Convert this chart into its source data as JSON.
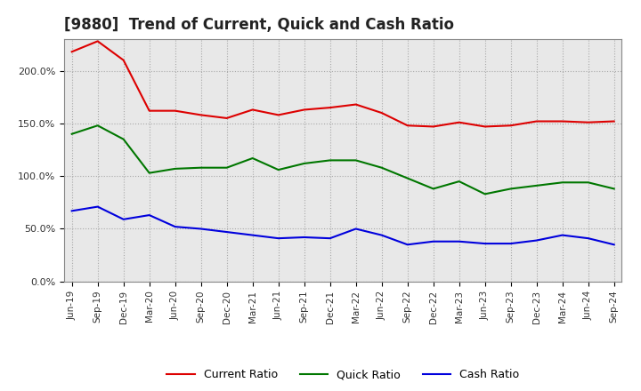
{
  "title": "[9880]  Trend of Current, Quick and Cash Ratio",
  "labels": [
    "Jun-19",
    "Sep-19",
    "Dec-19",
    "Mar-20",
    "Jun-20",
    "Sep-20",
    "Dec-20",
    "Mar-21",
    "Jun-21",
    "Sep-21",
    "Dec-21",
    "Mar-22",
    "Jun-22",
    "Sep-22",
    "Dec-22",
    "Mar-23",
    "Jun-23",
    "Sep-23",
    "Dec-23",
    "Mar-24",
    "Jun-24",
    "Sep-24"
  ],
  "current_ratio": [
    2.18,
    2.28,
    2.1,
    1.62,
    1.62,
    1.58,
    1.55,
    1.63,
    1.58,
    1.63,
    1.65,
    1.68,
    1.6,
    1.48,
    1.47,
    1.51,
    1.47,
    1.48,
    1.52,
    1.52,
    1.51,
    1.52
  ],
  "quick_ratio": [
    1.4,
    1.48,
    1.35,
    1.03,
    1.07,
    1.08,
    1.08,
    1.17,
    1.06,
    1.12,
    1.15,
    1.15,
    1.08,
    0.98,
    0.88,
    0.95,
    0.83,
    0.88,
    0.91,
    0.94,
    0.94,
    0.88
  ],
  "cash_ratio": [
    0.67,
    0.71,
    0.59,
    0.63,
    0.52,
    0.5,
    0.47,
    0.44,
    0.41,
    0.42,
    0.41,
    0.5,
    0.44,
    0.35,
    0.38,
    0.38,
    0.36,
    0.36,
    0.39,
    0.44,
    0.41,
    0.35
  ],
  "current_color": "#dd0000",
  "quick_color": "#007700",
  "cash_color": "#0000dd",
  "ylim": [
    0.0,
    2.3
  ],
  "yticks": [
    0.0,
    0.5,
    1.0,
    1.5,
    2.0
  ],
  "ytick_labels": [
    "0.0%",
    "50.0%",
    "100.0%",
    "150.0%",
    "200.0%"
  ],
  "bg_color": "#ffffff",
  "plot_bg_color": "#e8e8e8",
  "grid_color": "#999999",
  "title_fontsize": 12,
  "legend_labels": [
    "Current Ratio",
    "Quick Ratio",
    "Cash Ratio"
  ]
}
